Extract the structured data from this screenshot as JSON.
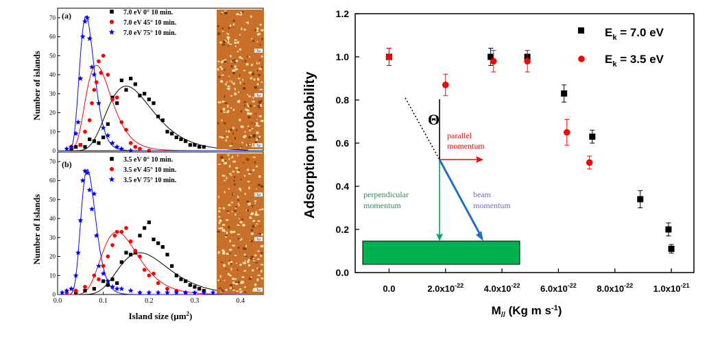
{
  "chart_data": [
    {
      "type": "scatter",
      "panel": "(a)",
      "xlabel": "",
      "ylabel": "Number of islands",
      "xlim": [
        0.0,
        0.45
      ],
      "ylim": [
        0,
        75
      ],
      "xticks": [],
      "yticks": [
        "0",
        "10",
        "20",
        "30",
        "40",
        "50",
        "60",
        "70"
      ],
      "legend": [
        "7.0 eV   0° 10 min.",
        "7.0 eV  45° 10 min.",
        "7.0 eV  75° 10 min."
      ],
      "legend_position": "top-right",
      "series": [
        {
          "name": "7.0 eV   0° 10 min.",
          "color": "#000000",
          "marker": "square",
          "points": [
            [
              0.03,
              1
            ],
            [
              0.04,
              2
            ],
            [
              0.05,
              3
            ],
            [
              0.06,
              2
            ],
            [
              0.07,
              6
            ],
            [
              0.08,
              5
            ],
            [
              0.09,
              4
            ],
            [
              0.1,
              7
            ],
            [
              0.11,
              14
            ],
            [
              0.12,
              28
            ],
            [
              0.13,
              25
            ],
            [
              0.14,
              37
            ],
            [
              0.15,
              32
            ],
            [
              0.16,
              38
            ],
            [
              0.17,
              35
            ],
            [
              0.18,
              29
            ],
            [
              0.19,
              30
            ],
            [
              0.2,
              27
            ],
            [
              0.21,
              25
            ],
            [
              0.22,
              18
            ],
            [
              0.23,
              16
            ],
            [
              0.24,
              10
            ],
            [
              0.25,
              9
            ],
            [
              0.26,
              7
            ],
            [
              0.27,
              6
            ],
            [
              0.28,
              5
            ],
            [
              0.29,
              3
            ],
            [
              0.3,
              3
            ],
            [
              0.31,
              2
            ],
            [
              0.32,
              2
            ]
          ],
          "fit": {
            "peak_x": 0.15,
            "peak_y": 34,
            "width": 0.05
          }
        },
        {
          "name": "7.0 eV  45° 10 min.",
          "color": "#ff0000",
          "marker": "circle",
          "points": [
            [
              0.03,
              2
            ],
            [
              0.05,
              3
            ],
            [
              0.06,
              10
            ],
            [
              0.07,
              16
            ],
            [
              0.075,
              25
            ],
            [
              0.08,
              32
            ],
            [
              0.085,
              36
            ],
            [
              0.09,
              47
            ],
            [
              0.095,
              41
            ],
            [
              0.1,
              50
            ],
            [
              0.11,
              40
            ],
            [
              0.12,
              27
            ],
            [
              0.13,
              28
            ],
            [
              0.14,
              15
            ],
            [
              0.15,
              11
            ],
            [
              0.16,
              4
            ],
            [
              0.17,
              2
            ],
            [
              0.18,
              1
            ],
            [
              0.2,
              0
            ]
          ],
          "fit": {
            "peak_x": 0.085,
            "peak_y": 45,
            "width": 0.028
          }
        },
        {
          "name": "7.0 eV  75° 10 min.",
          "color": "#0000ff",
          "marker": "star",
          "points": [
            [
              0.02,
              1
            ],
            [
              0.03,
              2
            ],
            [
              0.04,
              9
            ],
            [
              0.045,
              15
            ],
            [
              0.05,
              38
            ],
            [
              0.055,
              60
            ],
            [
              0.06,
              68
            ],
            [
              0.065,
              70
            ],
            [
              0.07,
              59
            ],
            [
              0.075,
              44
            ],
            [
              0.08,
              40
            ],
            [
              0.09,
              25
            ],
            [
              0.1,
              12
            ],
            [
              0.11,
              8
            ],
            [
              0.12,
              4
            ],
            [
              0.13,
              2
            ],
            [
              0.14,
              1
            ],
            [
              0.16,
              0
            ]
          ],
          "fit": {
            "peak_x": 0.062,
            "peak_y": 71,
            "width": 0.016
          }
        }
      ]
    },
    {
      "type": "scatter",
      "panel": "(b)",
      "xlabel": "Island size (μm²)",
      "ylabel": "Number of Islands",
      "xlim": [
        0.0,
        0.45
      ],
      "ylim": [
        0,
        75
      ],
      "xticks": [
        "0.0",
        "0.1",
        "0.2",
        "0.3",
        "0.4"
      ],
      "yticks": [
        "0",
        "10",
        "20",
        "30",
        "40",
        "50",
        "60",
        "70"
      ],
      "legend": [
        "3.5 eV   0° 10 min.",
        "3.5 eV  45° 10 min.",
        "3.5 eV  75° 10 min."
      ],
      "legend_position": "top-right",
      "series": [
        {
          "name": "3.5 eV   0° 10 min.",
          "color": "#000000",
          "marker": "square",
          "points": [
            [
              0.04,
              1
            ],
            [
              0.06,
              2
            ],
            [
              0.08,
              3
            ],
            [
              0.1,
              7
            ],
            [
              0.11,
              5
            ],
            [
              0.12,
              8
            ],
            [
              0.13,
              6
            ],
            [
              0.14,
              17
            ],
            [
              0.15,
              22
            ],
            [
              0.16,
              21
            ],
            [
              0.17,
              22
            ],
            [
              0.18,
              31
            ],
            [
              0.19,
              35
            ],
            [
              0.2,
              38
            ],
            [
              0.21,
              29
            ],
            [
              0.22,
              27
            ],
            [
              0.23,
              25
            ],
            [
              0.24,
              21
            ],
            [
              0.25,
              15
            ],
            [
              0.26,
              10
            ],
            [
              0.27,
              8
            ],
            [
              0.28,
              7
            ],
            [
              0.29,
              5
            ],
            [
              0.3,
              4
            ],
            [
              0.31,
              3
            ],
            [
              0.32,
              2
            ]
          ],
          "fit": {
            "peak_x": 0.18,
            "peak_y": 22,
            "width": 0.055
          }
        },
        {
          "name": "3.5 eV  45° 10 min.",
          "color": "#ff0000",
          "marker": "circle",
          "points": [
            [
              0.02,
              1
            ],
            [
              0.04,
              2
            ],
            [
              0.06,
              4
            ],
            [
              0.08,
              10
            ],
            [
              0.09,
              8
            ],
            [
              0.1,
              15
            ],
            [
              0.11,
              20
            ],
            [
              0.12,
              26
            ],
            [
              0.125,
              31
            ],
            [
              0.13,
              33
            ],
            [
              0.14,
              33
            ],
            [
              0.15,
              35
            ],
            [
              0.16,
              28
            ],
            [
              0.17,
              23
            ],
            [
              0.18,
              20
            ],
            [
              0.19,
              13
            ],
            [
              0.2,
              10
            ],
            [
              0.21,
              11
            ],
            [
              0.22,
              6
            ],
            [
              0.24,
              3
            ],
            [
              0.26,
              2
            ],
            [
              0.28,
              1
            ]
          ],
          "fit": {
            "peak_x": 0.13,
            "peak_y": 33,
            "width": 0.04
          }
        },
        {
          "name": "3.5 eV  75° 10 min.",
          "color": "#0000ff",
          "marker": "star",
          "points": [
            [
              0.01,
              1
            ],
            [
              0.02,
              2
            ],
            [
              0.03,
              3
            ],
            [
              0.04,
              10
            ],
            [
              0.045,
              22
            ],
            [
              0.05,
              39
            ],
            [
              0.055,
              60
            ],
            [
              0.06,
              65
            ],
            [
              0.065,
              64
            ],
            [
              0.07,
              55
            ],
            [
              0.075,
              45
            ],
            [
              0.08,
              53
            ],
            [
              0.085,
              31
            ],
            [
              0.09,
              15
            ],
            [
              0.1,
              11
            ],
            [
              0.11,
              7
            ],
            [
              0.12,
              4
            ],
            [
              0.13,
              3
            ],
            [
              0.14,
              3
            ],
            [
              0.16,
              2
            ],
            [
              0.18,
              1
            ],
            [
              0.2,
              1
            ],
            [
              0.22,
              1
            ],
            [
              0.24,
              1
            ],
            [
              0.26,
              1
            ],
            [
              0.28,
              1
            ],
            [
              0.3,
              1
            ],
            [
              0.32,
              1
            ],
            [
              0.34,
              1
            ]
          ],
          "fit": {
            "peak_x": 0.065,
            "peak_y": 66,
            "width": 0.016
          }
        }
      ]
    },
    {
      "type": "scatter",
      "xlabel": "M// (Kg m s-1)",
      "ylabel": "Adsorption probability",
      "xlim": [
        -1.2e-22,
        1.08e-21
      ],
      "ylim": [
        0.0,
        1.2
      ],
      "xticks": [
        {
          "v": 0,
          "base": "0.0",
          "exp": ""
        },
        {
          "v": 2e-22,
          "base": "2.0x10",
          "exp": "-22"
        },
        {
          "v": 4e-22,
          "base": "4.0x10",
          "exp": "-22"
        },
        {
          "v": 6e-22,
          "base": "6.0x10",
          "exp": "-22"
        },
        {
          "v": 8e-22,
          "base": "8.0x10",
          "exp": "-22"
        },
        {
          "v": 1e-21,
          "base": "1.0x10",
          "exp": "-21"
        }
      ],
      "yticks": [
        0.0,
        0.2,
        0.4,
        0.6,
        0.8,
        1.0,
        1.2
      ],
      "legend_position": "top-right",
      "series": [
        {
          "name": "Ek = 7.0 eV",
          "color": "#000000",
          "marker": "square",
          "points": [
            [
              0,
              1.0,
              0.04
            ],
            [
              3.6e-22,
              1.0,
              0.04
            ],
            [
              4.9e-22,
              1.0,
              0.03
            ],
            [
              6.2e-22,
              0.83,
              0.04
            ],
            [
              7.2e-22,
              0.63,
              0.03
            ],
            [
              8.9e-22,
              0.34,
              0.04
            ],
            [
              9.9e-22,
              0.2,
              0.03
            ],
            [
              1e-21,
              0.11,
              0.02
            ]
          ]
        },
        {
          "name": "Ek = 3.5 eV",
          "color": "#ff0000",
          "marker": "circle",
          "points": [
            [
              0,
              1.0,
              0.04
            ],
            [
              2e-22,
              0.87,
              0.05
            ],
            [
              3.7e-22,
              0.98,
              0.05
            ],
            [
              4.9e-22,
              0.98,
              0.05
            ],
            [
              6.3e-22,
              0.65,
              0.06
            ],
            [
              7.1e-22,
              0.51,
              0.03
            ]
          ]
        }
      ],
      "annotations": {
        "angle_symbol": "Θ",
        "parallel": [
          "parallel",
          "momentum"
        ],
        "perpendicular": [
          "perpendicular",
          "momentum"
        ],
        "beam": [
          "beam",
          "momentum"
        ]
      }
    }
  ],
  "legend_right": {
    "e1_base": "E",
    "e1_sub": "k",
    "e1_text": " = 7.0 eV",
    "e2_base": "E",
    "e2_sub": "k",
    "e2_text": " = 3.5 eV"
  },
  "insets": {
    "scale_labels": [
      "1μ",
      "1μ",
      "1μ",
      "1μ",
      "1μ",
      "1μ",
      "1μ"
    ]
  },
  "axis_left": {
    "a": "(a)",
    "b": "(b)",
    "xlabel_pre": "Island size (μm",
    "xlabel_exp": "2",
    "xlabel_post": ")"
  },
  "axis_right": {
    "xlabel_pre": "M",
    "xlabel_sub": "//",
    "xlabel_mid": " (Kg m s",
    "xlabel_exp": "-1",
    "xlabel_post": ")"
  },
  "colors": {
    "green_box": "#00b04f",
    "arrow_red": "#ff0000",
    "arrow_green": "#00a651",
    "arrow_blue": "#1f6fc5",
    "text_green": "#2e8b57",
    "text_blue": "#6a6acd",
    "inset_orange": "#c8702a"
  }
}
